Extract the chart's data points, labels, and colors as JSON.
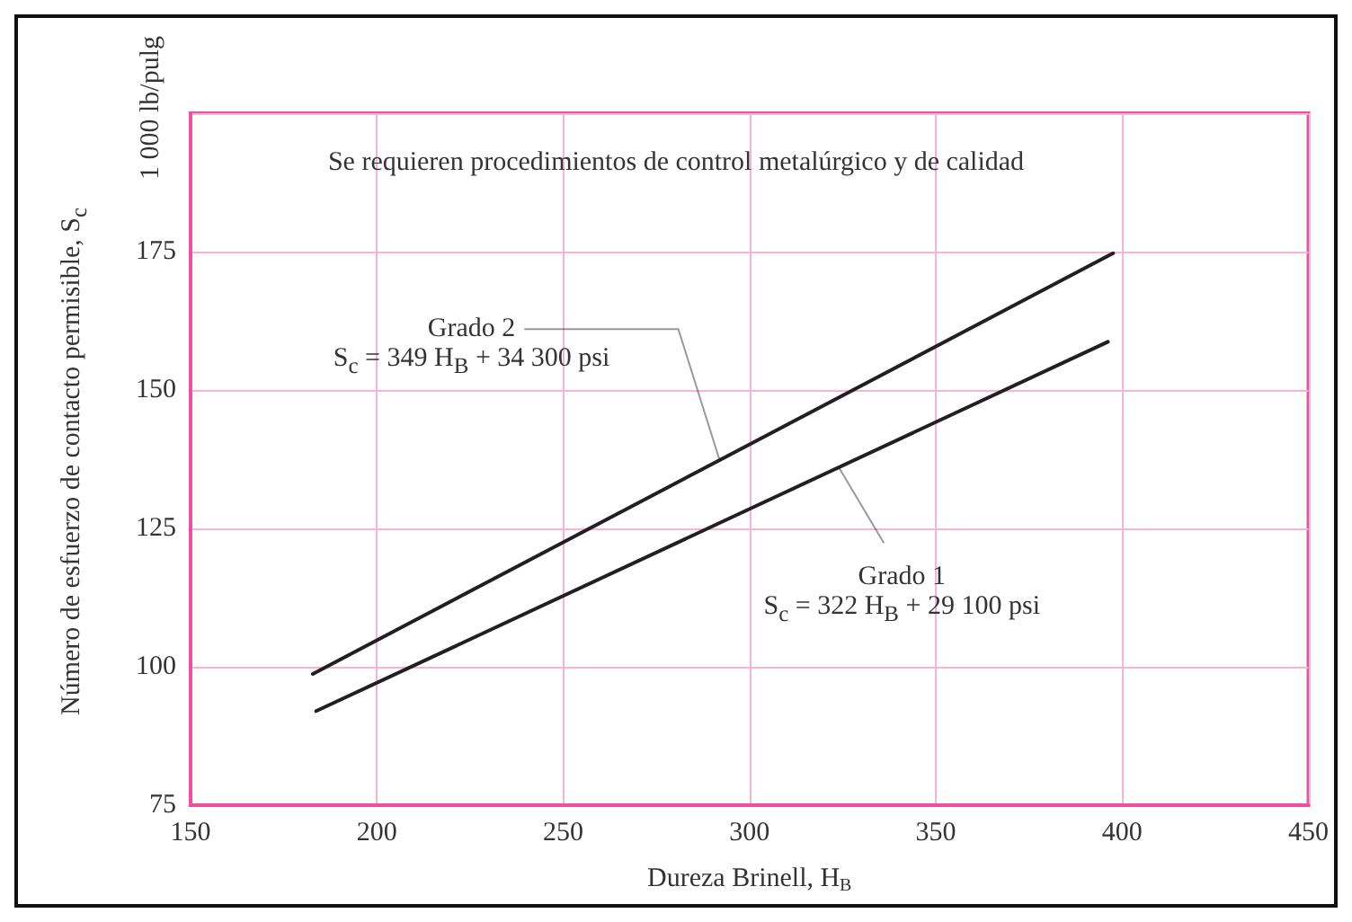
{
  "chart_data": {
    "type": "line",
    "xlabel": "Dureza Brinell, H$_{B}$",
    "ylabel": "Número de esfuerzo de contacto permisible, S$_{c}$\n1 000 lb/pulg",
    "annotations": [
      "Se requieren procedimientos de control metalúrgico y de calidad",
      {
        "text": "Grado 2",
        "x": 292,
        "y": 137.3
      },
      "S$_{c}$ = 349 H$_{B}$ + 34 300 psi",
      {
        "text": "Grado 1",
        "x": 324,
        "y": 136.0
      },
      "S$_{c}$ = 322 H$_{B}$ + 29 100 psi"
    ],
    "series": [
      {
        "color": "#231f20",
        "x": [
          182.8,
          397.6
        ],
        "values": [
          98.7,
          174.7
        ]
      },
      {
        "color": "#231f20",
        "x": [
          183.7,
          396.2
        ],
        "values": [
          92.0,
          158.7
        ]
      }
    ],
    "xlim": [
      150,
      450
    ],
    "xticks": [
      150,
      200,
      250,
      300,
      350,
      400,
      450
    ],
    "ylim": [
      75,
      200
    ],
    "yticks": [
      75,
      100,
      125,
      150,
      175,
      {
        "value": 200,
        "label": null
      }
    ],
    "grid": true,
    "marker": "none",
    "line_style": "solid"
  }
}
